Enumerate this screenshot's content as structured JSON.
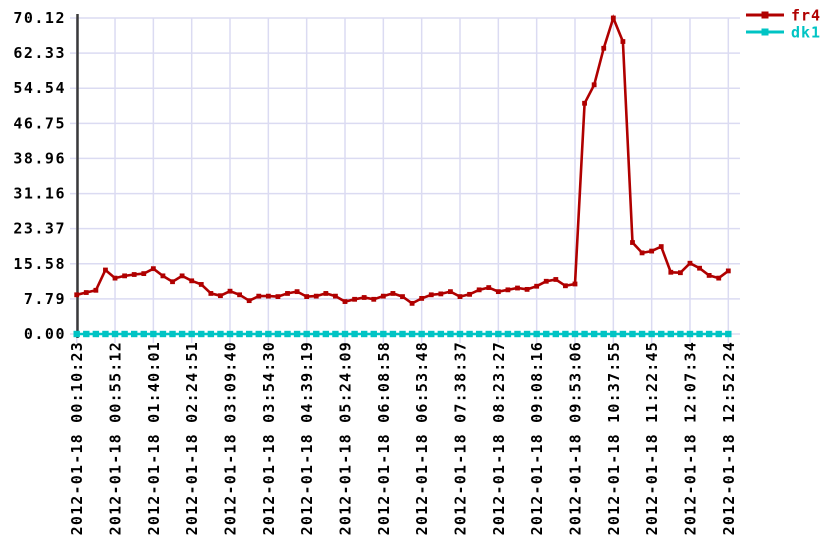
{
  "chart_data": {
    "type": "line",
    "title": "",
    "xlabel": "",
    "ylabel": "",
    "grid": true,
    "legend_position": "top-right",
    "ylim": [
      0,
      70.12
    ],
    "y_ticks": [
      70.12,
      62.33,
      54.54,
      46.75,
      38.96,
      31.16,
      23.37,
      15.58,
      7.79,
      0.0
    ],
    "y_tick_labels": [
      "70.12",
      "62.33",
      "54.54",
      "46.75",
      "38.96",
      "31.16",
      "23.37",
      "15.58",
      "7.79",
      "0.00"
    ],
    "x_labels": [
      "2012-01-18 00:10:23",
      "2012-01-18 00:55:12",
      "2012-01-18 01:40:01",
      "2012-01-18 02:24:51",
      "2012-01-18 03:09:40",
      "2012-01-18 03:54:30",
      "2012-01-18 04:39:19",
      "2012-01-18 05:24:09",
      "2012-01-18 06:08:58",
      "2012-01-18 06:53:48",
      "2012-01-18 07:38:37",
      "2012-01-18 08:23:27",
      "2012-01-18 09:08:16",
      "2012-01-18 09:53:06",
      "2012-01-18 10:37:55",
      "2012-01-18 11:22:45",
      "2012-01-18 12:07:34",
      "2012-01-18 12:52:24"
    ],
    "points_per_x_label": 4,
    "series": [
      {
        "name": "fr4",
        "color": "#B00000",
        "marker": "square",
        "values": [
          8.7,
          9.2,
          9.7,
          14.2,
          12.4,
          12.9,
          13.2,
          13.4,
          14.5,
          12.9,
          11.6,
          12.9,
          11.8,
          11.0,
          9.0,
          8.5,
          9.5,
          8.7,
          7.4,
          8.4,
          8.4,
          8.3,
          9.0,
          9.4,
          8.3,
          8.4,
          9.0,
          8.4,
          7.2,
          7.7,
          8.1,
          7.7,
          8.4,
          9.0,
          8.3,
          6.8,
          7.9,
          8.7,
          8.9,
          9.4,
          8.3,
          8.8,
          9.8,
          10.3,
          9.4,
          9.8,
          10.2,
          9.9,
          10.6,
          11.7,
          12.1,
          10.7,
          11.1,
          51.2,
          55.3,
          63.4,
          70.12,
          64.9,
          20.3,
          18.0,
          18.4,
          19.4,
          13.7,
          13.6,
          15.7,
          14.6,
          13.0,
          12.4,
          14.0
        ]
      },
      {
        "name": "dk1",
        "color": "#00C4C4",
        "marker": "square",
        "values": [
          0,
          0,
          0,
          0,
          0,
          0,
          0,
          0,
          0,
          0,
          0,
          0,
          0,
          0,
          0,
          0,
          0,
          0,
          0,
          0,
          0,
          0,
          0,
          0,
          0,
          0,
          0,
          0,
          0,
          0,
          0,
          0,
          0,
          0,
          0,
          0,
          0,
          0,
          0,
          0,
          0,
          0,
          0,
          0,
          0,
          0,
          0,
          0,
          0,
          0,
          0,
          0,
          0,
          0,
          0,
          0,
          0,
          0,
          0,
          0,
          0,
          0,
          0,
          0,
          0,
          0,
          0,
          0,
          0
        ]
      }
    ]
  },
  "colors": {
    "background": "#FFFFFF",
    "grid": "#DBDBF2",
    "axis": "#3A3A3A",
    "tick_text": "#000000"
  }
}
